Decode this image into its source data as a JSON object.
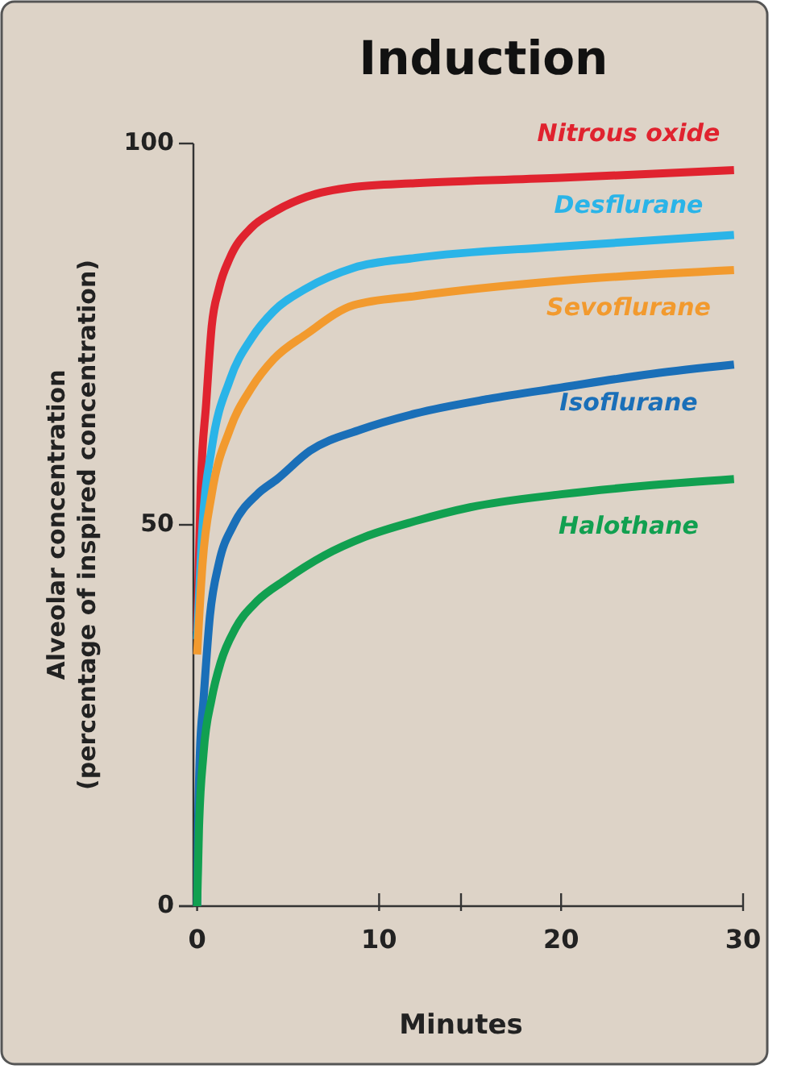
{
  "chart_data": {
    "type": "line",
    "title": "Induction",
    "xlabel": "Minutes",
    "ylabel": "Alveolar concentration\n(percentage of inspired concentration)",
    "xlim": [
      -1,
      30
    ],
    "xticks": [
      0,
      10,
      {
        "value": 14.5,
        "label": null
      },
      20,
      30
    ],
    "ylim": [
      0,
      100
    ],
    "yticks": [
      0,
      50,
      100
    ],
    "grid": false,
    "marker": "none",
    "line_style": "solid",
    "series": [
      {
        "name": "Nitrous oxide",
        "color": "#e0232f",
        "x": [
          0,
          0.2,
          0.5,
          0.8,
          1.2,
          1.8,
          3,
          4.2,
          6,
          8.6,
          12,
          20,
          29.5
        ],
        "values": [
          36,
          55,
          66,
          76,
          81,
          85,
          89,
          91,
          93,
          94.3,
          94.8,
          95.5,
          96.5
        ]
      },
      {
        "name": "Desflurane",
        "color": "#2ab4e8",
        "x": [
          0,
          0.3,
          0.8,
          1.8,
          3,
          4.2,
          6,
          8.6,
          12,
          20,
          29.5
        ],
        "values": [
          35,
          50,
          60,
          69,
          74.5,
          78,
          81,
          83.7,
          85,
          86.5,
          88
        ]
      },
      {
        "name": "Sevoflurane",
        "color": "#f29a2e",
        "x": [
          0,
          0.3,
          0.8,
          1.8,
          3,
          4.2,
          6,
          8.6,
          12,
          20,
          29.5
        ],
        "values": [
          33,
          45,
          54,
          62.5,
          68,
          71.7,
          75,
          78.8,
          80,
          82,
          83.4
        ]
      },
      {
        "name": "Isoflurane",
        "color": "#1a6fb8",
        "x": [
          0,
          0.05,
          0.15,
          0.35,
          0.7,
          1.2,
          2,
          3.3,
          4.4,
          6.2,
          9,
          12,
          16,
          20,
          25,
          29.5
        ],
        "values": [
          0,
          10,
          20,
          27,
          38,
          45,
          50,
          54,
          56,
          59.7,
          62.5,
          64.6,
          66.5,
          68,
          69.8,
          71
        ]
      },
      {
        "name": "Halothane",
        "color": "#11a050",
        "x": [
          0,
          0.1,
          0.35,
          0.8,
          1.3,
          2.1,
          3.3,
          4.8,
          7,
          9.2,
          12,
          15,
          20,
          25,
          29.5
        ],
        "values": [
          0,
          10,
          20,
          27.2,
          32,
          36.4,
          40,
          42.7,
          46,
          48.4,
          50.5,
          52.3,
          54,
          55.2,
          56
        ]
      }
    ]
  }
}
